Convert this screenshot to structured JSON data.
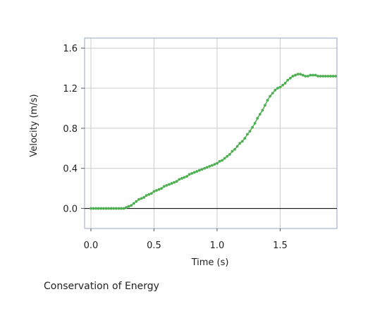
{
  "caption": "Conservation of Energy",
  "colors": {
    "series": "#4caf50",
    "grid": "#cccccc",
    "frame": "#9aa3c8",
    "zero_line": "#000000"
  },
  "chart_data": {
    "type": "scatter",
    "xlabel": "Time (s)",
    "ylabel": "Velocity (m/s)",
    "xlim": [
      -0.05,
      1.95
    ],
    "ylim": [
      -0.2,
      1.7
    ],
    "xticks": [
      0.0,
      0.5,
      1.0,
      1.5
    ],
    "xtick_labels": [
      "0.0",
      "0.5",
      "1.0",
      "1.5"
    ],
    "yticks": [
      0.0,
      0.4,
      0.8,
      1.2,
      1.6
    ],
    "ytick_labels": [
      "0.0",
      "0.4",
      "0.8",
      "1.2",
      "1.6"
    ],
    "grid": true,
    "series": [
      {
        "marker": "dot-line",
        "x": [
          0.0,
          0.02,
          0.04,
          0.06,
          0.08,
          0.1,
          0.12,
          0.14,
          0.16,
          0.18,
          0.2,
          0.22,
          0.24,
          0.26,
          0.28,
          0.3,
          0.32,
          0.34,
          0.36,
          0.38,
          0.4,
          0.42,
          0.44,
          0.46,
          0.48,
          0.5,
          0.52,
          0.54,
          0.56,
          0.58,
          0.6,
          0.62,
          0.64,
          0.66,
          0.68,
          0.7,
          0.72,
          0.74,
          0.76,
          0.78,
          0.8,
          0.82,
          0.84,
          0.86,
          0.88,
          0.9,
          0.92,
          0.94,
          0.96,
          0.98,
          1.0,
          1.02,
          1.04,
          1.06,
          1.08,
          1.1,
          1.12,
          1.14,
          1.16,
          1.18,
          1.2,
          1.22,
          1.24,
          1.26,
          1.28,
          1.3,
          1.32,
          1.34,
          1.36,
          1.38,
          1.4,
          1.42,
          1.44,
          1.46,
          1.48,
          1.5,
          1.52,
          1.54,
          1.56,
          1.58,
          1.6,
          1.62,
          1.64,
          1.66,
          1.68,
          1.7,
          1.72,
          1.74,
          1.76,
          1.78,
          1.8,
          1.82,
          1.84,
          1.86,
          1.88,
          1.9,
          1.92,
          1.94
        ],
        "y": [
          0.0,
          0.0,
          0.0,
          0.0,
          0.0,
          0.0,
          0.0,
          0.0,
          0.0,
          0.0,
          0.0,
          0.0,
          0.0,
          0.0,
          0.01,
          0.02,
          0.03,
          0.05,
          0.07,
          0.09,
          0.1,
          0.11,
          0.13,
          0.14,
          0.15,
          0.17,
          0.18,
          0.19,
          0.2,
          0.22,
          0.23,
          0.24,
          0.25,
          0.26,
          0.27,
          0.29,
          0.3,
          0.31,
          0.32,
          0.34,
          0.35,
          0.36,
          0.37,
          0.38,
          0.39,
          0.4,
          0.41,
          0.42,
          0.43,
          0.44,
          0.45,
          0.47,
          0.48,
          0.5,
          0.52,
          0.54,
          0.57,
          0.59,
          0.62,
          0.65,
          0.67,
          0.7,
          0.74,
          0.77,
          0.81,
          0.85,
          0.9,
          0.94,
          0.98,
          1.03,
          1.08,
          1.12,
          1.15,
          1.18,
          1.2,
          1.21,
          1.23,
          1.25,
          1.28,
          1.3,
          1.32,
          1.33,
          1.34,
          1.34,
          1.33,
          1.32,
          1.32,
          1.33,
          1.33,
          1.33,
          1.32,
          1.32,
          1.32,
          1.32,
          1.32,
          1.32,
          1.32,
          1.32
        ]
      }
    ]
  }
}
